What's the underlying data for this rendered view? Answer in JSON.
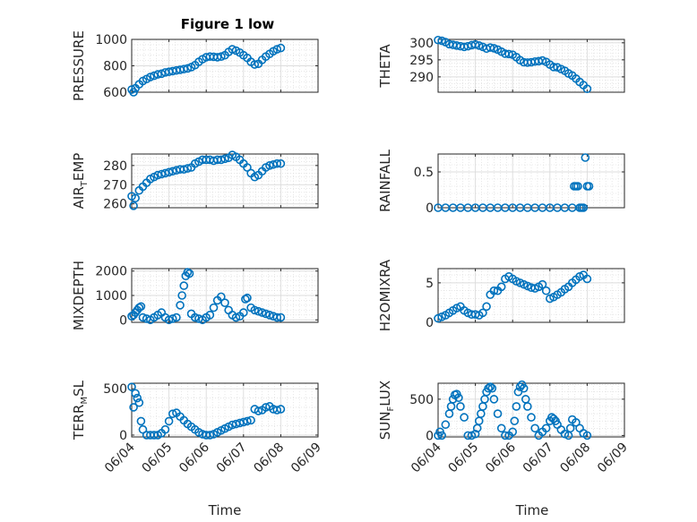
{
  "figure": {
    "title": "Figure 1 low",
    "xlabel": "Time",
    "marker_color": "#0072BD",
    "marker": "open-circle",
    "grid": "major+minor",
    "xticks": [
      "06/04",
      "06/05",
      "06/06",
      "06/07",
      "06/08",
      "06/09"
    ]
  },
  "chart_data": [
    {
      "type": "scatter",
      "ylabel": "PRESSURE",
      "ylim": [
        600,
        1000
      ],
      "yticks": [
        600,
        800,
        1000
      ],
      "x": [
        4.0,
        4.05,
        4.1,
        4.2,
        4.3,
        4.4,
        4.5,
        4.6,
        4.7,
        4.8,
        4.9,
        5.0,
        5.1,
        5.2,
        5.3,
        5.4,
        5.5,
        5.6,
        5.7,
        5.8,
        5.9,
        6.0,
        6.1,
        6.2,
        6.3,
        6.4,
        6.5,
        6.6,
        6.7,
        6.8,
        6.9,
        7.0,
        7.1,
        7.2,
        7.3,
        7.4,
        7.5,
        7.6,
        7.7,
        7.8,
        7.9,
        8.0
      ],
      "values": [
        620,
        600,
        630,
        660,
        685,
        700,
        715,
        725,
        735,
        740,
        750,
        755,
        760,
        765,
        770,
        775,
        780,
        790,
        805,
        830,
        850,
        865,
        870,
        868,
        865,
        870,
        880,
        905,
        925,
        915,
        900,
        880,
        860,
        830,
        810,
        815,
        845,
        870,
        890,
        910,
        925,
        935
      ]
    },
    {
      "type": "scatter",
      "ylabel": "THETA",
      "ylim": [
        285.5,
        301
      ],
      "yticks": [
        290,
        295,
        300
      ],
      "x": [
        4.0,
        4.1,
        4.2,
        4.3,
        4.4,
        4.5,
        4.6,
        4.7,
        4.8,
        4.9,
        5.0,
        5.1,
        5.2,
        5.3,
        5.4,
        5.5,
        5.6,
        5.7,
        5.8,
        5.9,
        6.0,
        6.1,
        6.2,
        6.3,
        6.4,
        6.5,
        6.6,
        6.7,
        6.8,
        6.9,
        7.0,
        7.1,
        7.2,
        7.3,
        7.4,
        7.5,
        7.6,
        7.7,
        7.8,
        7.9,
        8.0
      ],
      "values": [
        300.8,
        300.6,
        300.2,
        299.6,
        299.4,
        299.2,
        299.0,
        298.8,
        299.0,
        299.3,
        299.5,
        299.2,
        298.8,
        298.3,
        298.6,
        298.4,
        298.0,
        297.4,
        296.8,
        296.7,
        296.5,
        295.8,
        294.9,
        294.3,
        294.2,
        294.3,
        294.5,
        294.6,
        294.8,
        294.4,
        293.6,
        292.9,
        292.8,
        292.3,
        291.8,
        291.0,
        290.4,
        289.5,
        288.5,
        287.6,
        286.5
      ]
    },
    {
      "type": "scatter",
      "ylabel": "AIR_TEMP",
      "ylim": [
        258,
        286
      ],
      "yticks": [
        260,
        270,
        280
      ],
      "x": [
        4.0,
        4.05,
        4.1,
        4.2,
        4.3,
        4.4,
        4.5,
        4.6,
        4.7,
        4.8,
        4.9,
        5.0,
        5.1,
        5.2,
        5.3,
        5.4,
        5.5,
        5.6,
        5.7,
        5.8,
        5.9,
        6.0,
        6.1,
        6.2,
        6.3,
        6.4,
        6.5,
        6.6,
        6.7,
        6.8,
        6.9,
        7.0,
        7.1,
        7.2,
        7.3,
        7.4,
        7.5,
        7.6,
        7.7,
        7.8,
        7.9,
        8.0
      ],
      "values": [
        264,
        259,
        263,
        267,
        269,
        271,
        273,
        274,
        275,
        275.5,
        276,
        276.5,
        277,
        277.5,
        278,
        278,
        278.5,
        279,
        281,
        282,
        283,
        283,
        283,
        282.5,
        283,
        283,
        283.5,
        284,
        285.5,
        284.5,
        283,
        281,
        279,
        276,
        274,
        275,
        277,
        279,
        280,
        280.5,
        281,
        281
      ]
    },
    {
      "type": "scatter",
      "ylabel": "RAINFALL",
      "ylim": [
        0,
        0.75
      ],
      "yticks": [
        0,
        0.5
      ],
      "ytick_labels": [
        "0",
        "0.5"
      ],
      "x": [
        4.0,
        4.2,
        4.4,
        4.6,
        4.8,
        5.0,
        5.2,
        5.4,
        5.6,
        5.8,
        6.0,
        6.2,
        6.4,
        6.6,
        6.8,
        7.0,
        7.2,
        7.4,
        7.6,
        7.65,
        7.7,
        7.75,
        7.8,
        7.85,
        7.9,
        7.95,
        8.0,
        8.05
      ],
      "values": [
        0,
        0,
        0,
        0,
        0,
        0,
        0,
        0,
        0,
        0,
        0,
        0,
        0,
        0,
        0,
        0,
        0,
        0,
        0,
        0.3,
        0.3,
        0.3,
        0,
        0,
        0,
        0.7,
        0.3,
        0.3
      ]
    },
    {
      "type": "scatter",
      "ylabel": "MIXDEPTH",
      "ylim": [
        -100,
        2100
      ],
      "yticks": [
        0,
        1000,
        2000
      ],
      "x": [
        4.0,
        4.05,
        4.1,
        4.15,
        4.2,
        4.25,
        4.3,
        4.4,
        4.5,
        4.6,
        4.7,
        4.8,
        4.9,
        5.0,
        5.1,
        5.2,
        5.3,
        5.35,
        5.4,
        5.45,
        5.5,
        5.55,
        5.6,
        5.7,
        5.8,
        5.9,
        6.0,
        6.1,
        6.2,
        6.3,
        6.4,
        6.5,
        6.6,
        6.7,
        6.8,
        6.9,
        7.0,
        7.05,
        7.1,
        7.2,
        7.3,
        7.4,
        7.5,
        7.6,
        7.7,
        7.8,
        7.9,
        8.0
      ],
      "values": [
        150,
        200,
        300,
        400,
        500,
        550,
        100,
        50,
        0,
        100,
        200,
        300,
        100,
        0,
        50,
        100,
        600,
        1000,
        1400,
        1800,
        1950,
        1900,
        250,
        100,
        50,
        0,
        100,
        200,
        500,
        800,
        950,
        700,
        400,
        200,
        100,
        150,
        300,
        850,
        900,
        500,
        400,
        350,
        300,
        250,
        200,
        150,
        100,
        100
      ]
    },
    {
      "type": "scatter",
      "ylabel": "H2OMIXRA",
      "ylim": [
        0,
        6.8
      ],
      "yticks": [
        0,
        5
      ],
      "x": [
        4.0,
        4.1,
        4.2,
        4.3,
        4.4,
        4.5,
        4.6,
        4.7,
        4.8,
        4.9,
        5.0,
        5.1,
        5.2,
        5.3,
        5.4,
        5.5,
        5.6,
        5.7,
        5.8,
        5.9,
        6.0,
        6.1,
        6.2,
        6.3,
        6.4,
        6.5,
        6.6,
        6.7,
        6.8,
        6.9,
        7.0,
        7.1,
        7.2,
        7.3,
        7.4,
        7.5,
        7.6,
        7.7,
        7.8,
        7.9,
        8.0
      ],
      "values": [
        0.5,
        0.7,
        0.9,
        1.2,
        1.5,
        1.8,
        2.0,
        1.5,
        1.2,
        1.0,
        1.0,
        0.9,
        1.2,
        2.0,
        3.5,
        4.0,
        4.0,
        4.5,
        5.5,
        5.8,
        5.5,
        5.2,
        5.0,
        4.8,
        4.6,
        4.4,
        4.3,
        4.5,
        4.8,
        4.0,
        3.0,
        3.2,
        3.5,
        3.8,
        4.2,
        4.5,
        5.0,
        5.4,
        5.8,
        6.0,
        5.5
      ]
    },
    {
      "type": "scatter",
      "ylabel": "TERR_MSL",
      "ylim": [
        -20,
        560
      ],
      "yticks": [
        0,
        500
      ],
      "x": [
        4.0,
        4.05,
        4.1,
        4.15,
        4.2,
        4.25,
        4.3,
        4.4,
        4.5,
        4.6,
        4.7,
        4.8,
        4.9,
        5.0,
        5.1,
        5.2,
        5.3,
        5.4,
        5.5,
        5.6,
        5.7,
        5.8,
        5.9,
        6.0,
        6.1,
        6.2,
        6.3,
        6.4,
        6.5,
        6.6,
        6.7,
        6.8,
        6.9,
        7.0,
        7.1,
        7.2,
        7.3,
        7.4,
        7.5,
        7.6,
        7.7,
        7.8,
        7.9,
        8.0
      ],
      "values": [
        520,
        300,
        450,
        400,
        350,
        150,
        60,
        0,
        0,
        0,
        0,
        20,
        60,
        150,
        230,
        240,
        200,
        160,
        120,
        90,
        60,
        30,
        10,
        0,
        0,
        10,
        30,
        50,
        70,
        90,
        110,
        120,
        130,
        140,
        150,
        160,
        280,
        260,
        270,
        300,
        310,
        280,
        270,
        280
      ]
    },
    {
      "type": "scatter",
      "ylabel": "SUN_FLUX",
      "ylim": [
        -20,
        720
      ],
      "yticks": [
        0,
        500
      ],
      "x": [
        4.0,
        4.05,
        4.1,
        4.2,
        4.3,
        4.35,
        4.4,
        4.45,
        4.5,
        4.55,
        4.6,
        4.7,
        4.8,
        4.9,
        5.0,
        5.05,
        5.1,
        5.15,
        5.2,
        5.25,
        5.3,
        5.35,
        5.4,
        5.45,
        5.5,
        5.6,
        5.7,
        5.8,
        5.9,
        6.0,
        6.05,
        6.1,
        6.15,
        6.2,
        6.25,
        6.3,
        6.35,
        6.4,
        6.5,
        6.6,
        6.7,
        6.8,
        6.9,
        7.0,
        7.05,
        7.1,
        7.15,
        7.2,
        7.3,
        7.4,
        7.5,
        7.55,
        7.6,
        7.7,
        7.8,
        7.9,
        8.0
      ],
      "values": [
        0,
        50,
        0,
        150,
        300,
        400,
        500,
        560,
        570,
        520,
        400,
        250,
        0,
        0,
        20,
        100,
        200,
        300,
        400,
        500,
        600,
        650,
        670,
        650,
        500,
        300,
        100,
        0,
        0,
        50,
        200,
        400,
        600,
        670,
        700,
        650,
        500,
        400,
        250,
        100,
        0,
        50,
        100,
        200,
        250,
        230,
        200,
        150,
        80,
        20,
        0,
        100,
        220,
        180,
        100,
        30,
        0
      ]
    }
  ]
}
